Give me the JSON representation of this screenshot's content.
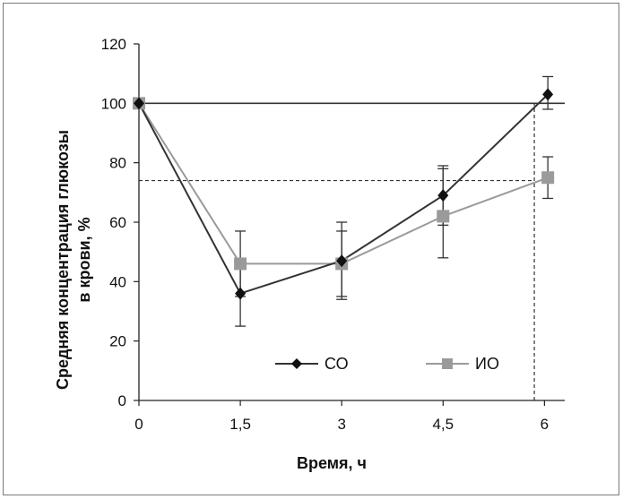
{
  "chart_data": {
    "type": "line",
    "title": "",
    "xlabel": "Время, ч",
    "ylabel_line1": "Средняя концентрация  глюкозы",
    "ylabel_line2": "в крови, %",
    "x_ticks": [
      "0",
      "1,5",
      "3",
      "4,5",
      "6"
    ],
    "x_values": [
      0,
      1.5,
      3,
      4.5,
      6
    ],
    "xlim": [
      0,
      6.3
    ],
    "y_ticks": [
      "0",
      "20",
      "40",
      "60",
      "80",
      "100",
      "120"
    ],
    "ylim": [
      0,
      120
    ],
    "grid": false,
    "legend_position": "bottom-right",
    "series": [
      {
        "name": "СО",
        "marker": "diamond",
        "color": "#333333",
        "points": [
          {
            "x": 0,
            "y": 100
          },
          {
            "x": 1.5,
            "y": 36,
            "err_low": 11,
            "err_high": 11
          },
          {
            "x": 3,
            "y": 47,
            "err_low": 13,
            "err_high": 13
          },
          {
            "x": 4.5,
            "y": 69,
            "err_low": 10,
            "err_high": 10
          },
          {
            "x": 6.05,
            "y": 103,
            "err_low": 5,
            "err_high": 6
          }
        ]
      },
      {
        "name": "ИО",
        "marker": "square",
        "color": "#9a9a9a",
        "points": [
          {
            "x": 0,
            "y": 100
          },
          {
            "x": 1.5,
            "y": 46,
            "err_low": 11,
            "err_high": 11
          },
          {
            "x": 3,
            "y": 46,
            "err_low": 11,
            "err_high": 11
          },
          {
            "x": 4.5,
            "y": 62,
            "err_low": 14,
            "err_high": 16
          },
          {
            "x": 6.05,
            "y": 75,
            "err_low": 7,
            "err_high": 7
          }
        ]
      }
    ],
    "reference_lines": [
      {
        "orientation": "horizontal",
        "y": 100,
        "style": "solid",
        "x_from": 0,
        "x_to": 6.3
      },
      {
        "orientation": "horizontal",
        "y": 74,
        "style": "dashed",
        "x_from": 0,
        "x_to": 5.85
      },
      {
        "orientation": "vertical",
        "x": 5.85,
        "style": "dashed",
        "y_from": 0,
        "y_to": 100
      }
    ]
  }
}
